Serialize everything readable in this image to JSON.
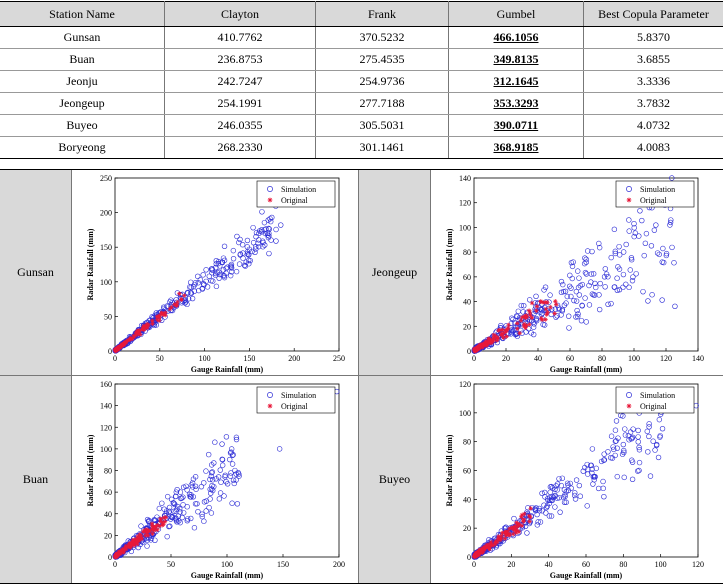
{
  "table": {
    "headers": [
      "Station Name",
      "Clayton",
      "Frank",
      "Gumbel",
      "Best Copula Parameter"
    ],
    "rows": [
      [
        "Gunsan",
        "410.7762",
        "370.5232",
        "466.1056",
        "5.8370"
      ],
      [
        "Buan",
        "236.8753",
        "275.4535",
        "349.8135",
        "3.6855"
      ],
      [
        "Jeonju",
        "242.7247",
        "254.9736",
        "312.1645",
        "3.3336"
      ],
      [
        "Jeongeup",
        "254.1991",
        "277.7188",
        "353.3293",
        "3.7832"
      ],
      [
        "Buyeo",
        "246.0355",
        "305.5031",
        "390.0711",
        "4.0732"
      ],
      [
        "Boryeong",
        "268.2330",
        "301.1461",
        "368.9185",
        "4.0083"
      ]
    ]
  },
  "panels": {
    "gunsan": {
      "label": "Gunsan"
    },
    "jeongeup": {
      "label": "Jeongeup"
    },
    "buan": {
      "label": "Buan"
    },
    "buyeo": {
      "label": "Buyeo"
    }
  },
  "chart_data": [
    {
      "type": "scatter",
      "station": "Gunsan",
      "xlabel": "Gauge Rainfall (mm)",
      "ylabel": "Radar Rainfall (mm)",
      "xlim": [
        0,
        250
      ],
      "ylim": [
        0,
        250
      ],
      "xticks": [
        "0",
        "50",
        "100",
        "150",
        "200",
        "250"
      ],
      "yticks": [
        "0",
        "50",
        "100",
        "150",
        "200",
        "250"
      ],
      "legend_position": "top-right",
      "series": [
        {
          "name": "Simulation",
          "marker": "circle",
          "color": "#2b2bd6",
          "slope": 1.0,
          "xmax": 180,
          "spread": 0.13,
          "outliers": [
            [
              175,
              193
            ],
            [
              185,
              182
            ],
            [
              150,
              147
            ],
            [
              140,
              140
            ],
            [
              130,
              125
            ],
            [
              120,
              128
            ]
          ]
        },
        {
          "name": "Original",
          "marker": "star",
          "color": "#e8193a",
          "slope": 1.0,
          "xmax": 80,
          "spread": 0.08,
          "outliers": []
        }
      ]
    },
    {
      "type": "scatter",
      "station": "Jeongeup",
      "xlabel": "Gauge Rainfall (mm)",
      "ylabel": "Radar Rainfall (mm)",
      "xlim": [
        0,
        140
      ],
      "ylim": [
        0,
        140
      ],
      "xticks": [
        "0",
        "20",
        "40",
        "60",
        "80",
        "100",
        "120",
        "140"
      ],
      "yticks": [
        "0",
        "20",
        "40",
        "60",
        "80",
        "100",
        "120",
        "140"
      ],
      "legend_position": "top-right",
      "series": [
        {
          "name": "Simulation",
          "marker": "circle",
          "color": "#2b2bd6",
          "slope": 0.75,
          "xmax": 125,
          "spread": 0.34,
          "outliers": [
            [
              123,
              106
            ],
            [
              100,
              103
            ],
            [
              103,
              93
            ],
            [
              97,
              97
            ],
            [
              78,
              87
            ],
            [
              62,
              72
            ]
          ]
        },
        {
          "name": "Original",
          "marker": "star",
          "color": "#e8193a",
          "slope": 0.75,
          "xmax": 50,
          "spread": 0.2,
          "outliers": []
        }
      ]
    },
    {
      "type": "scatter",
      "station": "Buan",
      "xlabel": "Gauge Rainfall (mm)",
      "ylabel": "Radar Rainfall (mm)",
      "xlim": [
        0,
        200
      ],
      "ylim": [
        0,
        160
      ],
      "xticks": [
        "0",
        "50",
        "100",
        "150",
        "200"
      ],
      "yticks": [
        "0",
        "20",
        "40",
        "60",
        "80",
        "100",
        "120",
        "140",
        "160"
      ],
      "legend_position": "top-right",
      "series": [
        {
          "name": "Simulation",
          "marker": "circle",
          "color": "#2b2bd6",
          "slope": 0.78,
          "xmax": 110,
          "spread": 0.3,
          "outliers": [
            [
              198,
              153
            ],
            [
              147,
              100
            ],
            [
              105,
              86
            ],
            [
              110,
              78
            ],
            [
              96,
              90
            ]
          ]
        },
        {
          "name": "Original",
          "marker": "star",
          "color": "#e8193a",
          "slope": 0.78,
          "xmax": 45,
          "spread": 0.15,
          "outliers": []
        }
      ]
    },
    {
      "type": "scatter",
      "station": "Buyeo",
      "xlabel": "Gauge Rainfall (mm)",
      "ylabel": "Radar Rainfall (mm)",
      "xlim": [
        0,
        120
      ],
      "ylim": [
        0,
        120
      ],
      "xticks": [
        "0",
        "20",
        "40",
        "60",
        "80",
        "100",
        "120"
      ],
      "yticks": [
        "0",
        "20",
        "40",
        "60",
        "80",
        "100",
        "120"
      ],
      "legend_position": "top-right",
      "series": [
        {
          "name": "Simulation",
          "marker": "circle",
          "color": "#2b2bd6",
          "slope": 0.9,
          "xmax": 100,
          "spread": 0.22,
          "outliers": [
            [
              119,
              105
            ],
            [
              100,
              99
            ],
            [
              101,
              89
            ],
            [
              85,
              83
            ],
            [
              80,
              78
            ]
          ]
        },
        {
          "name": "Original",
          "marker": "star",
          "color": "#e8193a",
          "slope": 0.9,
          "xmax": 30,
          "spread": 0.15,
          "outliers": []
        }
      ]
    }
  ]
}
